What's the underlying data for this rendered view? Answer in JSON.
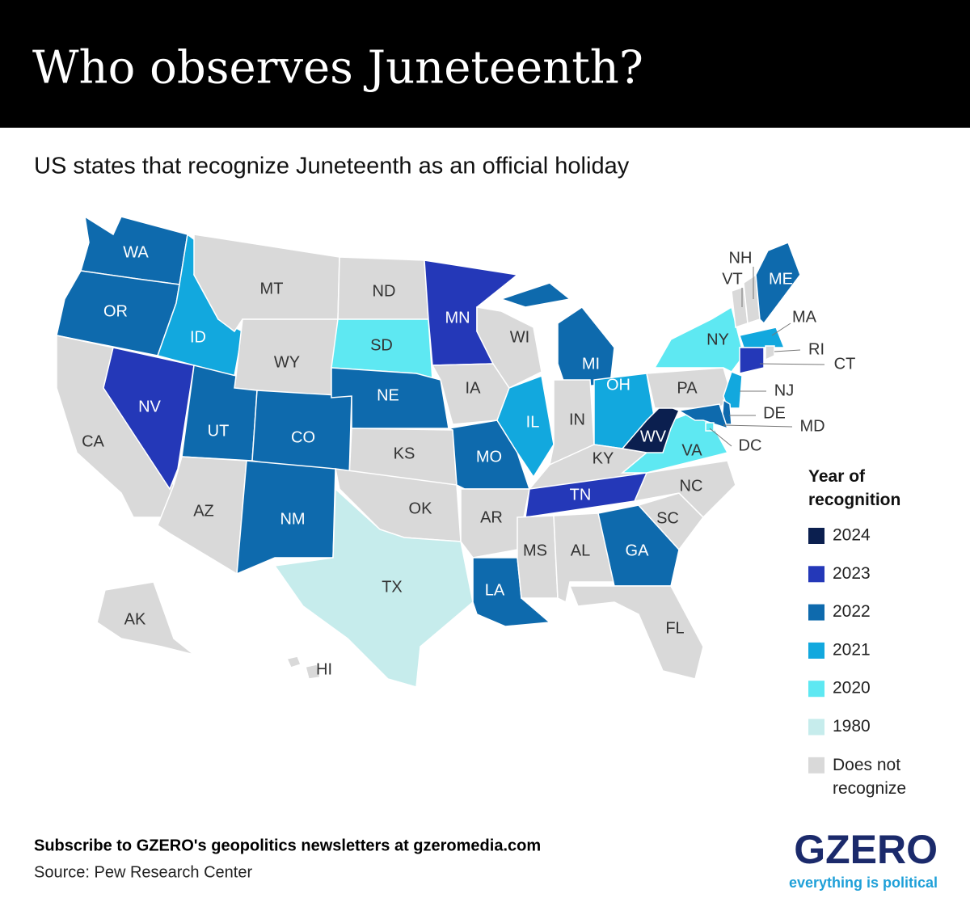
{
  "header": {
    "title": "Who observes Juneteenth?"
  },
  "subtitle": "US states that recognize Juneteenth as an official holiday",
  "legend": {
    "title": "Year of recognition",
    "items": [
      {
        "label": "2024",
        "color": "#0b1f4f"
      },
      {
        "label": "2023",
        "color": "#2438b8"
      },
      {
        "label": "2022",
        "color": "#0e6aad"
      },
      {
        "label": "2021",
        "color": "#12a8de"
      },
      {
        "label": "2020",
        "color": "#5ee8f2"
      },
      {
        "label": "1980",
        "color": "#c6ecec"
      },
      {
        "label": "Does not recognize",
        "color": "#d9d9d9"
      }
    ]
  },
  "map": {
    "states": [
      {
        "label": "WA",
        "status": "2022"
      },
      {
        "label": "OR",
        "status": "2022"
      },
      {
        "label": "CA",
        "status": "Does not recognize"
      },
      {
        "label": "NV",
        "status": "2023"
      },
      {
        "label": "ID",
        "status": "2021"
      },
      {
        "label": "MT",
        "status": "Does not recognize"
      },
      {
        "label": "WY",
        "status": "Does not recognize"
      },
      {
        "label": "UT",
        "status": "2022"
      },
      {
        "label": "CO",
        "status": "2022"
      },
      {
        "label": "AZ",
        "status": "Does not recognize"
      },
      {
        "label": "NM",
        "status": "2022"
      },
      {
        "label": "ND",
        "status": "Does not recognize"
      },
      {
        "label": "SD",
        "status": "2020"
      },
      {
        "label": "NE",
        "status": "2022"
      },
      {
        "label": "KS",
        "status": "Does not recognize"
      },
      {
        "label": "OK",
        "status": "Does not recognize"
      },
      {
        "label": "TX",
        "status": "1980"
      },
      {
        "label": "MN",
        "status": "2023"
      },
      {
        "label": "IA",
        "status": "Does not recognize"
      },
      {
        "label": "MO",
        "status": "2022"
      },
      {
        "label": "AR",
        "status": "Does not recognize"
      },
      {
        "label": "LA",
        "status": "2022"
      },
      {
        "label": "WI",
        "status": "Does not recognize"
      },
      {
        "label": "IL",
        "status": "2021"
      },
      {
        "label": "MI",
        "status": "2022"
      },
      {
        "label": "IN",
        "status": "Does not recognize"
      },
      {
        "label": "OH",
        "status": "2021"
      },
      {
        "label": "KY",
        "status": "Does not recognize"
      },
      {
        "label": "TN",
        "status": "2023"
      },
      {
        "label": "MS",
        "status": "Does not recognize"
      },
      {
        "label": "AL",
        "status": "Does not recognize"
      },
      {
        "label": "GA",
        "status": "2022"
      },
      {
        "label": "FL",
        "status": "Does not recognize"
      },
      {
        "label": "SC",
        "status": "Does not recognize"
      },
      {
        "label": "NC",
        "status": "Does not recognize"
      },
      {
        "label": "VA",
        "status": "2020"
      },
      {
        "label": "WV",
        "status": "2024"
      },
      {
        "label": "PA",
        "status": "Does not recognize"
      },
      {
        "label": "NY",
        "status": "2020"
      },
      {
        "label": "VT",
        "status": "Does not recognize"
      },
      {
        "label": "NH",
        "status": "Does not recognize"
      },
      {
        "label": "ME",
        "status": "2022"
      },
      {
        "label": "MA",
        "status": "2021"
      },
      {
        "label": "RI",
        "status": "Does not recognize"
      },
      {
        "label": "CT",
        "status": "2023"
      },
      {
        "label": "NJ",
        "status": "2021"
      },
      {
        "label": "DE",
        "status": "2022"
      },
      {
        "label": "MD",
        "status": "2022"
      },
      {
        "label": "DC",
        "status": "2020"
      },
      {
        "label": "AK",
        "status": "Does not recognize"
      },
      {
        "label": "HI",
        "status": "Does not recognize"
      }
    ]
  },
  "footer": {
    "subscribe": "Subscribe to GZERO's geopolitics newsletters at gzeromedia.com",
    "source": "Source: Pew Research Center"
  },
  "logo": {
    "name": "GZERO",
    "tagline": "everything is political"
  }
}
